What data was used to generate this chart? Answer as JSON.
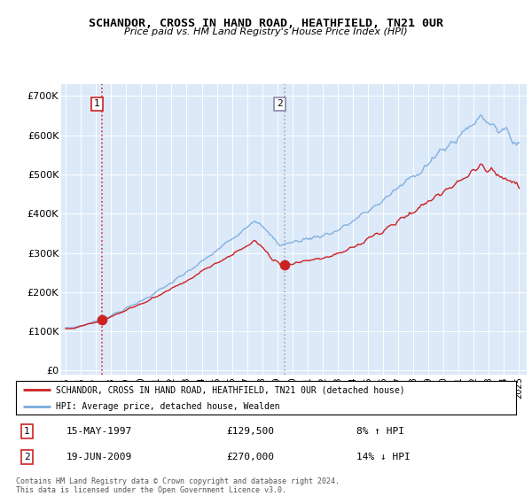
{
  "title": "SCHANDOR, CROSS IN HAND ROAD, HEATHFIELD, TN21 0UR",
  "subtitle": "Price paid vs. HM Land Registry's House Price Index (HPI)",
  "legend_line1": "SCHANDOR, CROSS IN HAND ROAD, HEATHFIELD, TN21 0UR (detached house)",
  "legend_line2": "HPI: Average price, detached house, Wealden",
  "transaction1_date": "15-MAY-1997",
  "transaction1_price": 129500,
  "transaction1_price_str": "£129,500",
  "transaction1_note": "8% ↑ HPI",
  "transaction2_date": "19-JUN-2009",
  "transaction2_price": 270000,
  "transaction2_price_str": "£270,000",
  "transaction2_note": "14% ↓ HPI",
  "footer": "Contains HM Land Registry data © Crown copyright and database right 2024.\nThis data is licensed under the Open Government Licence v3.0.",
  "plot_bg_color": "#dce9f8",
  "red_line_color": "#cc2222",
  "blue_line_color": "#7aaadd",
  "dashed1_color": "#cc2222",
  "dashed2_color": "#8888aa",
  "ytick_labels": [
    "£0",
    "£100K",
    "£200K",
    "£300K",
    "£400K",
    "£500K",
    "£600K",
    "£700K"
  ],
  "yticks": [
    0,
    100000,
    200000,
    300000,
    400000,
    500000,
    600000,
    700000
  ],
  "transaction1_x": 1997.38,
  "transaction2_x": 2009.47,
  "xlim_left": 1994.7,
  "xlim_right": 2025.5,
  "ylim_bottom": -10000,
  "ylim_top": 730000
}
